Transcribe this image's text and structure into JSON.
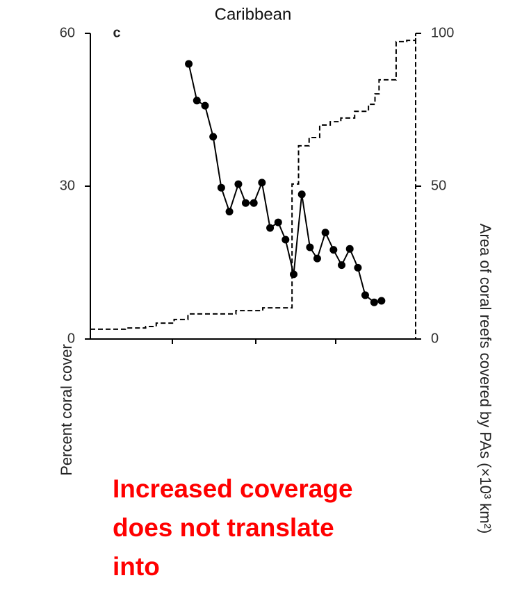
{
  "chart_data": {
    "type": "line",
    "title": "Caribbean",
    "panel_label": "c",
    "y_label": "Percent coral cover",
    "y2_label": "Area of coral reefs covered by PAs (×10³ km²)",
    "annotation": "Increased coverage does not translate into",
    "xlim": [
      0,
      4
    ],
    "ylim": [
      0,
      60
    ],
    "yticks": [
      0,
      30,
      60
    ],
    "y2lim": [
      0,
      100
    ],
    "y2ticks": [
      0,
      50,
      100
    ],
    "series": [
      {
        "color": "#000000",
        "axis": "y",
        "markers": true,
        "dashed": false,
        "step": false,
        "x": [
          1.21,
          1.31,
          1.41,
          1.51,
          1.61,
          1.71,
          1.82,
          1.91,
          2.01,
          2.11,
          2.21,
          2.31,
          2.4,
          2.5,
          2.6,
          2.7,
          2.79,
          2.89,
          2.99,
          3.09,
          3.19,
          3.29,
          3.38,
          3.49,
          3.58
        ],
        "values": [
          54.0,
          46.8,
          45.8,
          39.7,
          29.7,
          25.0,
          30.4,
          26.7,
          26.7,
          30.7,
          21.8,
          22.9,
          19.5,
          12.7,
          28.4,
          18.0,
          15.8,
          20.9,
          17.5,
          14.5,
          17.7,
          14.0,
          8.6,
          7.2,
          7.5
        ]
      },
      {
        "color": "#000000",
        "axis": "y2",
        "markers": false,
        "dashed": true,
        "step": true,
        "x": [
          0,
          0.43,
          0.68,
          0.81,
          1.03,
          1.2,
          1.79,
          2.12,
          2.48,
          2.56,
          2.69,
          2.82,
          2.95,
          3.08,
          3.25,
          3.42,
          3.5,
          3.55,
          3.76,
          3.89,
          4,
          4
        ],
        "values": [
          3.2,
          3.6,
          4.1,
          5.2,
          6.4,
          8.2,
          9.3,
          10.2,
          50.7,
          63.2,
          65.9,
          70,
          71.1,
          72.3,
          74.5,
          76.8,
          80.2,
          84.8,
          97.3,
          97.7,
          100,
          0
        ]
      }
    ]
  }
}
